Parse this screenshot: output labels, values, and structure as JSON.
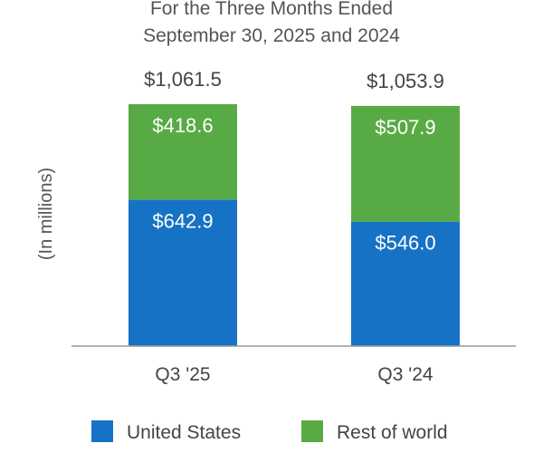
{
  "chart_data": {
    "type": "bar",
    "stacked": true,
    "title_lines": [
      "For the Three Months Ended",
      "September 30, 2025 and 2024"
    ],
    "ylabel": "(In millions)",
    "xlabel": "",
    "categories": [
      "Q3 '25",
      "Q3 '24"
    ],
    "series": [
      {
        "name": "United States",
        "color": "#1672c4",
        "values": [
          642.9,
          546.0
        ],
        "labels": [
          "$642.9",
          "$546.0"
        ]
      },
      {
        "name": "Rest of world",
        "color": "#58ab44",
        "values": [
          418.6,
          507.9
        ],
        "labels": [
          "$418.6",
          "$507.9"
        ]
      }
    ],
    "totals": [
      1061.5,
      1053.9
    ],
    "total_labels": [
      "$1,061.5",
      "$1,053.9"
    ],
    "ylim": [
      0,
      1300
    ],
    "grid": false,
    "legend_position": "bottom"
  }
}
